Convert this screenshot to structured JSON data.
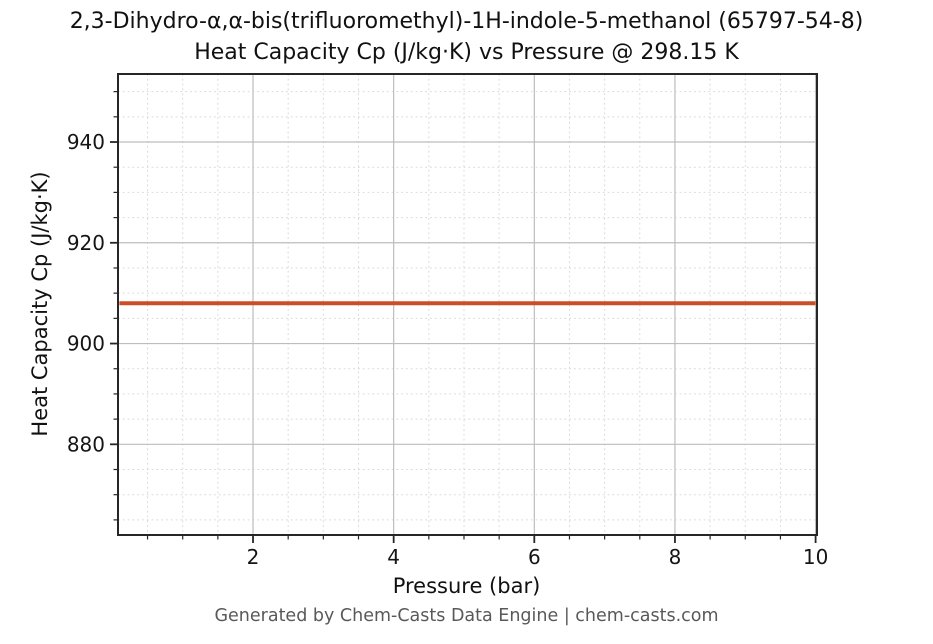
{
  "figure": {
    "title_line1": "2,3-Dihydro-α,α-bis(trifluoromethyl)-1H-indole-5-methanol (65797-54-8)",
    "title_line2": "Heat Capacity Cp (J/kg·K) vs Pressure @ 298.15 K",
    "footer": "Generated by Chem-Casts Data Engine | chem-casts.com"
  },
  "chart_data": {
    "type": "line",
    "title": "2,3-Dihydro-α,α-bis(trifluoromethyl)-1H-indole-5-methanol (65797-54-8)",
    "subtitle": "Heat Capacity Cp (J/kg·K) vs Pressure @ 298.15 K",
    "compound_cas": "65797-54-8",
    "temperature_label": "298.15 K",
    "xlabel": "Pressure (bar)",
    "ylabel": "Heat Capacity Cp (J/kg·K)",
    "xlim": [
      0.08,
      10.02
    ],
    "ylim": [
      862,
      953.5
    ],
    "x_major_ticks": [
      2,
      4,
      6,
      8,
      10
    ],
    "x_minor_step": 0.5,
    "y_major_ticks": [
      880,
      900,
      920,
      940
    ],
    "y_minor_step": 5,
    "grid": {
      "major": "solid",
      "minor": "dashed"
    },
    "legend_position": "none",
    "series": [
      {
        "name": "Heat Capacity Cp",
        "color": "#cb4e28",
        "constant_value": 908,
        "x": [
          0.1,
          1,
          2,
          3,
          4,
          5,
          6,
          7,
          8,
          9,
          10
        ],
        "y": [
          908,
          908,
          908,
          908,
          908,
          908,
          908,
          908,
          908,
          908,
          908
        ]
      }
    ]
  },
  "style": {
    "background": "#ffffff",
    "spine_color": "#262626",
    "major_grid_color": "#bdbdbd",
    "minor_grid_color": "#d9d9d9",
    "tick_color": "#262626",
    "tick_label_color": "#151515",
    "title_color": "#111111",
    "footer_color": "#595959",
    "line_color": "#cb4e28"
  }
}
